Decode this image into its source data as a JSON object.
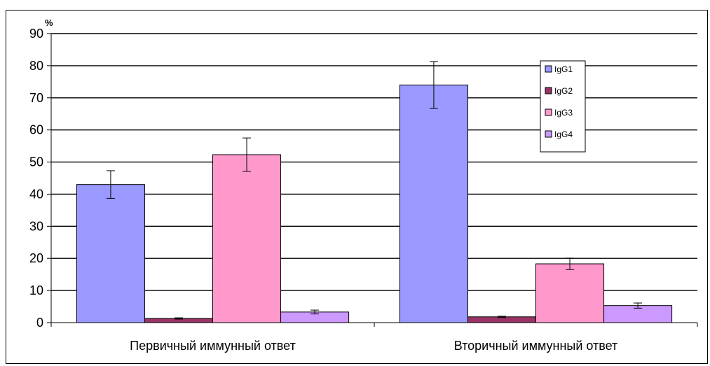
{
  "chart_data": {
    "type": "bar",
    "title": "",
    "xlabel": "",
    "ylabel": "%",
    "ylim": [
      0,
      90
    ],
    "yticks": [
      0,
      10,
      20,
      30,
      40,
      50,
      60,
      70,
      80,
      90
    ],
    "grid": true,
    "legend": "top-right",
    "categories": [
      "Первичный иммунный ответ",
      "Вторичный иммунный ответ"
    ],
    "series": [
      {
        "name": "IgG1",
        "color": "#9999ff",
        "values": [
          43,
          74
        ],
        "errors": [
          4.3,
          7.3
        ]
      },
      {
        "name": "IgG2",
        "color": "#993366",
        "values": [
          1.3,
          1.8
        ],
        "errors": [
          0.2,
          0.2
        ]
      },
      {
        "name": "IgG3",
        "color": "#ff99cc",
        "values": [
          52.3,
          18.3
        ],
        "errors": [
          5.2,
          1.8
        ]
      },
      {
        "name": "IgG4",
        "color": "#cc99ff",
        "values": [
          3.3,
          5.3
        ],
        "errors": [
          0.6,
          0.8
        ]
      }
    ]
  }
}
